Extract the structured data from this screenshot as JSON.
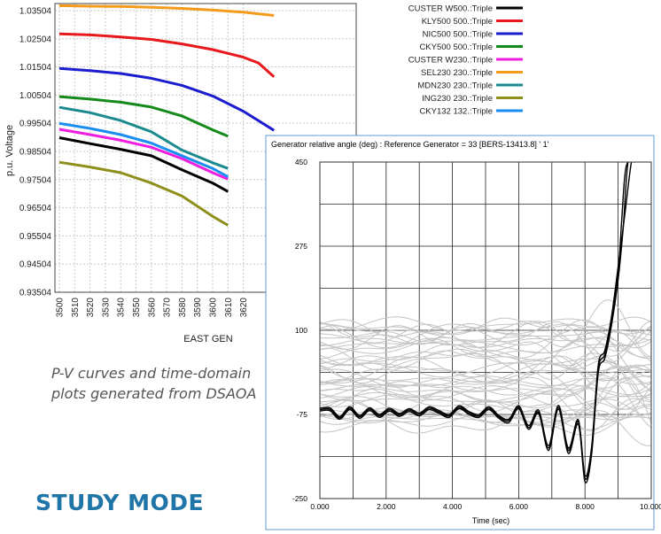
{
  "pv_chart": {
    "chart_data": {
      "type": "line",
      "xlabel": "EAST GEN",
      "ylabel": "p.u. Voltage",
      "x_ticks": [
        3500,
        3510,
        3520,
        3530,
        3540,
        3550,
        3560,
        3570,
        3580,
        3590,
        3600,
        3610,
        3620
      ],
      "y_ticks": [
        "1.03504",
        "1.02504",
        "1.01504",
        "1.00504",
        "0.99504",
        "0.98504",
        "0.97504",
        "0.96504",
        "0.95504",
        "0.94504",
        "0.93504"
      ],
      "ylim": [
        0.93504,
        1.03754
      ],
      "grid": true,
      "legend_placement": "top-right",
      "series": [
        {
          "name": "CUSTER W500.:Triple",
          "color": "#000000",
          "x": [
            3500,
            3520,
            3540,
            3560,
            3580,
            3600,
            3610
          ],
          "y": [
            0.9899,
            0.9878,
            0.9858,
            0.9835,
            0.9785,
            0.9738,
            0.9708
          ]
        },
        {
          "name": "KLY500  500.:Triple",
          "color": "#e8191c",
          "x": [
            3500,
            3520,
            3540,
            3560,
            3580,
            3600,
            3620,
            3630,
            3640
          ],
          "y": [
            1.0268,
            1.0264,
            1.0257,
            1.0248,
            1.0232,
            1.0212,
            1.0185,
            1.0164,
            1.0115
          ]
        },
        {
          "name": "NIC500  500.:Triple",
          "color": "#1c1ccf",
          "x": [
            3500,
            3520,
            3540,
            3560,
            3580,
            3600,
            3620,
            3640
          ],
          "y": [
            1.0145,
            1.0137,
            1.0127,
            1.011,
            1.0085,
            1.0047,
            0.9993,
            0.9925
          ]
        },
        {
          "name": "CKY500  500.:Triple",
          "color": "#138a1a",
          "x": [
            3500,
            3520,
            3540,
            3560,
            3580,
            3600,
            3610
          ],
          "y": [
            1.0045,
            1.0036,
            1.0025,
            1.0008,
            0.9976,
            0.9927,
            0.9904
          ]
        },
        {
          "name": "CUSTER W230.:Triple",
          "color": "#ee1ee0",
          "x": [
            3500,
            3520,
            3540,
            3560,
            3580,
            3600,
            3610
          ],
          "y": [
            0.9929,
            0.991,
            0.989,
            0.9865,
            0.9825,
            0.9775,
            0.9752
          ]
        },
        {
          "name": "SEL230  230.:Triple",
          "color": "#f59a1a",
          "x": [
            3500,
            3520,
            3540,
            3560,
            3580,
            3600,
            3620,
            3640
          ],
          "y": [
            1.0368,
            1.0366,
            1.0365,
            1.0362,
            1.0358,
            1.0352,
            1.0345,
            1.0333
          ]
        },
        {
          "name": "MDN230  230.:Triple",
          "color": "#1a8a8e",
          "x": [
            3500,
            3520,
            3540,
            3560,
            3580,
            3600,
            3610
          ],
          "y": [
            1.0007,
            0.9988,
            0.996,
            0.992,
            0.9855,
            0.981,
            0.979
          ]
        },
        {
          "name": "ING230  230.:Triple",
          "color": "#8e8e1a",
          "x": [
            3500,
            3520,
            3540,
            3560,
            3580,
            3600,
            3610
          ],
          "y": [
            0.9812,
            0.9795,
            0.9775,
            0.9738,
            0.9692,
            0.962,
            0.9588
          ]
        },
        {
          "name": "CKY132  132.:Triple",
          "color": "#1a8ef0",
          "x": [
            3500,
            3520,
            3540,
            3560,
            3580,
            3600,
            3610
          ],
          "y": [
            0.995,
            0.9932,
            0.991,
            0.988,
            0.9835,
            0.979,
            0.976
          ]
        }
      ]
    }
  },
  "time_chart": {
    "chart_data": {
      "type": "line",
      "title": "Generator relative angle (deg) : Reference Generator = 33 [BERS-13413.8] ' 1'",
      "xlabel": "Time (sec)",
      "ylabel": "",
      "x_ticks": [
        "0.000",
        "2.000",
        "4.000",
        "6.000",
        "8.000",
        "10.000"
      ],
      "y_ticks": [
        "450",
        "275",
        "100",
        "-75",
        "-250"
      ],
      "xlim": [
        0,
        10
      ],
      "ylim": [
        -250,
        450
      ],
      "grid": true,
      "series": [
        {
          "color": "#000000",
          "x": [
            0,
            0.3,
            0.6,
            0.9,
            1.2,
            1.5,
            1.8,
            2.1,
            2.4,
            2.7,
            3.0,
            3.3,
            3.6,
            3.9,
            4.2,
            4.5,
            4.8,
            5.1,
            5.4,
            5.7,
            6.0,
            6.3,
            6.6,
            6.9,
            7.2,
            7.5,
            7.8,
            8.0,
            8.2,
            8.4,
            8.6,
            8.8,
            9.0,
            9.1,
            9.2,
            9.3,
            9.5
          ],
          "y": [
            -65,
            -64,
            -82,
            -62,
            -80,
            -64,
            -78,
            -65,
            -76,
            -66,
            -75,
            -62,
            -70,
            -78,
            -60,
            -72,
            -78,
            -62,
            -80,
            -88,
            -60,
            -102,
            -70,
            -145,
            -60,
            -150,
            -90,
            -208,
            -150,
            20,
            50,
            120,
            220,
            320,
            420,
            450,
            450
          ]
        },
        {
          "color": "#000000",
          "x": [
            0,
            0.3,
            0.6,
            0.9,
            1.2,
            1.5,
            1.8,
            2.1,
            2.4,
            2.7,
            3.0,
            3.3,
            3.6,
            3.9,
            4.2,
            4.5,
            4.8,
            5.1,
            5.4,
            5.7,
            6.0,
            6.3,
            6.6,
            6.9,
            7.2,
            7.5,
            7.8,
            8.0,
            8.2,
            8.4,
            8.6,
            8.8,
            9.0,
            9.15,
            9.3,
            9.5
          ],
          "y": [
            -68,
            -67,
            -85,
            -65,
            -83,
            -67,
            -81,
            -68,
            -79,
            -69,
            -78,
            -65,
            -73,
            -81,
            -63,
            -75,
            -81,
            -65,
            -83,
            -92,
            -63,
            -106,
            -73,
            -150,
            -64,
            -156,
            -95,
            -215,
            -158,
            12,
            42,
            110,
            205,
            310,
            450,
            450
          ]
        },
        {
          "color": "#000000",
          "x": [
            0,
            0.3,
            0.6,
            0.9,
            1.2,
            1.5,
            1.8,
            2.1,
            2.4,
            2.7,
            3.0,
            3.3,
            3.6,
            3.9,
            4.2,
            4.5,
            4.8,
            5.1,
            5.4,
            5.7,
            6.0,
            6.3,
            6.6,
            6.9,
            7.2,
            7.5,
            7.8,
            8.0,
            8.2,
            8.4,
            8.6,
            8.8,
            9.0,
            9.2,
            9.4,
            9.5
          ],
          "y": [
            -62,
            -61,
            -79,
            -59,
            -77,
            -61,
            -75,
            -62,
            -73,
            -63,
            -72,
            -59,
            -67,
            -75,
            -57,
            -69,
            -75,
            -59,
            -77,
            -85,
            -57,
            -98,
            -66,
            -140,
            -56,
            -145,
            -86,
            -202,
            -142,
            28,
            58,
            128,
            232,
            340,
            450,
            450
          ]
        }
      ]
    }
  },
  "caption": {
    "line1": "P-V curves and time-domain",
    "line2": "plots generated from DSAOA"
  },
  "section_title": "STUDY MODE",
  "colors": {
    "accent": "#1f74a8",
    "grey_trace": "#c4c4c4",
    "frame": "#5b9bd5"
  }
}
